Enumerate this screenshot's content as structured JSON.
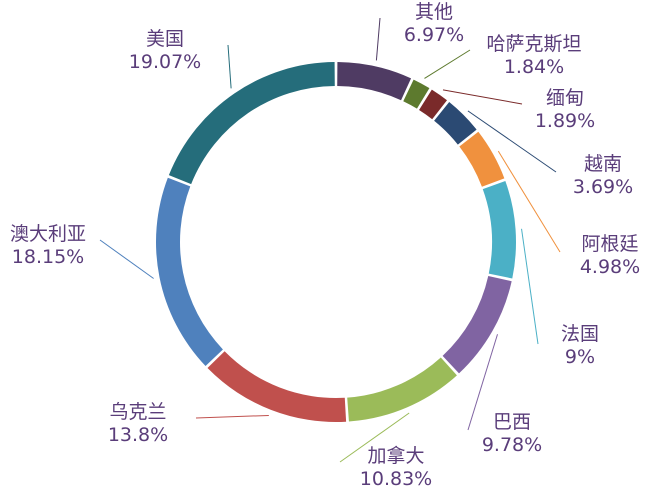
{
  "chart_data": {
    "type": "pie",
    "title": "",
    "donut": true,
    "legend": "none",
    "slices": [
      {
        "name": "其他",
        "value": 6.97,
        "pct_label": "6.97%",
        "color": "#4f3b63"
      },
      {
        "name": "哈萨克斯坦",
        "value": 1.84,
        "pct_label": "1.84%",
        "color": "#5d7a2e"
      },
      {
        "name": "缅甸",
        "value": 1.89,
        "pct_label": "1.89%",
        "color": "#7a2a2a"
      },
      {
        "name": "越南",
        "value": 3.69,
        "pct_label": "3.69%",
        "color": "#2b4a73"
      },
      {
        "name": "阿根廷",
        "value": 4.98,
        "pct_label": "4.98%",
        "color": "#f0913e"
      },
      {
        "name": "法国",
        "value": 9.0,
        "pct_label": "9%",
        "color": "#4bb0c6"
      },
      {
        "name": "巴西",
        "value": 9.78,
        "pct_label": "9.78%",
        "color": "#8064a2"
      },
      {
        "name": "加拿大",
        "value": 10.83,
        "pct_label": "10.83%",
        "color": "#9bbb59"
      },
      {
        "name": "乌克兰",
        "value": 13.8,
        "pct_label": "13.8%",
        "color": "#c0504d"
      },
      {
        "name": "澳大利亚",
        "value": 18.15,
        "pct_label": "18.15%",
        "color": "#4f81bd"
      },
      {
        "name": "美国",
        "value": 19.07,
        "pct_label": "19.07%",
        "color": "#256d7b"
      }
    ]
  }
}
